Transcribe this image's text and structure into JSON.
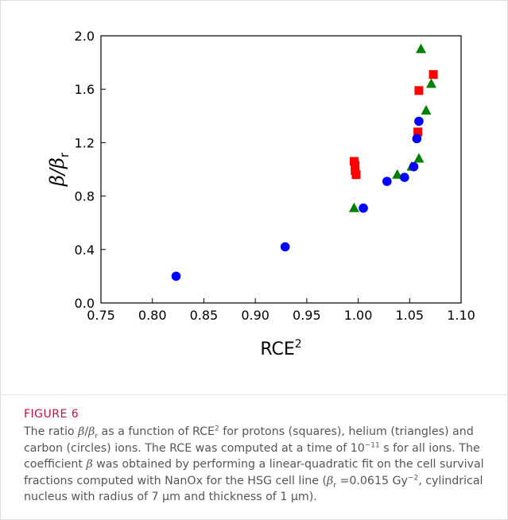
{
  "figure": {
    "label": "FIGURE 6",
    "caption_parts": {
      "p1": "The ratio ",
      "beta": "β",
      "slash": "/",
      "beta_r_base": "β",
      "r": "r",
      "p2": " as a function of RCE",
      "sq": "2",
      "p3": " for protons (squares), helium (triangles) and carbon (circles) ions. The RCE was computed at a time of 10",
      "exp": "−11",
      "p4": " s for all ions. The coefficient ",
      "p5": " was obtained by performing a linear-quadratic fit on the cell survival fractions computed with NanOx for the HSG cell line (",
      "p6": " =0.0615 Gy",
      "exp2": "−2",
      "p7": ", cylindrical nucleus with radius of 7 µm and thickness of 1 µm)."
    }
  },
  "chart_data": {
    "type": "scatter",
    "xlabel": "RCE",
    "xlabel_sup": "2",
    "ylabel": "β/β",
    "ylabel_sub": "r",
    "xlim": [
      0.75,
      1.1
    ],
    "ylim": [
      0.0,
      2.0
    ],
    "xticks": [
      0.75,
      0.8,
      0.85,
      0.9,
      0.95,
      1.0,
      1.05,
      1.1
    ],
    "xtick_labels": [
      "0.75",
      "0.80",
      "0.85",
      "0.90",
      "0.95",
      "1.00",
      "1.05",
      "1.10"
    ],
    "yticks": [
      0.0,
      0.4,
      0.8,
      1.2,
      1.6,
      2.0
    ],
    "ytick_labels": [
      "0.0",
      "0.4",
      "0.8",
      "1.2",
      "1.6",
      "2.0"
    ],
    "grid": false,
    "series": [
      {
        "marker": "square",
        "color": "#ff0000",
        "points": [
          [
            0.996,
            1.06
          ],
          [
            0.997,
            1.03
          ],
          [
            0.997,
            0.99
          ],
          [
            0.998,
            0.96
          ],
          [
            1.058,
            1.28
          ],
          [
            1.059,
            1.59
          ],
          [
            1.073,
            1.71
          ]
        ]
      },
      {
        "marker": "triangle",
        "color": "#008000",
        "points": [
          [
            0.996,
            0.71
          ],
          [
            1.038,
            0.96
          ],
          [
            1.052,
            1.02
          ],
          [
            1.059,
            1.08
          ],
          [
            1.061,
            1.9
          ],
          [
            1.066,
            1.44
          ],
          [
            1.071,
            1.64
          ]
        ]
      },
      {
        "marker": "circle",
        "color": "#0000ff",
        "points": [
          [
            0.823,
            0.2
          ],
          [
            0.929,
            0.42
          ],
          [
            1.005,
            0.71
          ],
          [
            1.028,
            0.91
          ],
          [
            1.045,
            0.94
          ],
          [
            1.054,
            1.02
          ],
          [
            1.057,
            1.23
          ],
          [
            1.059,
            1.36
          ]
        ]
      }
    ]
  }
}
